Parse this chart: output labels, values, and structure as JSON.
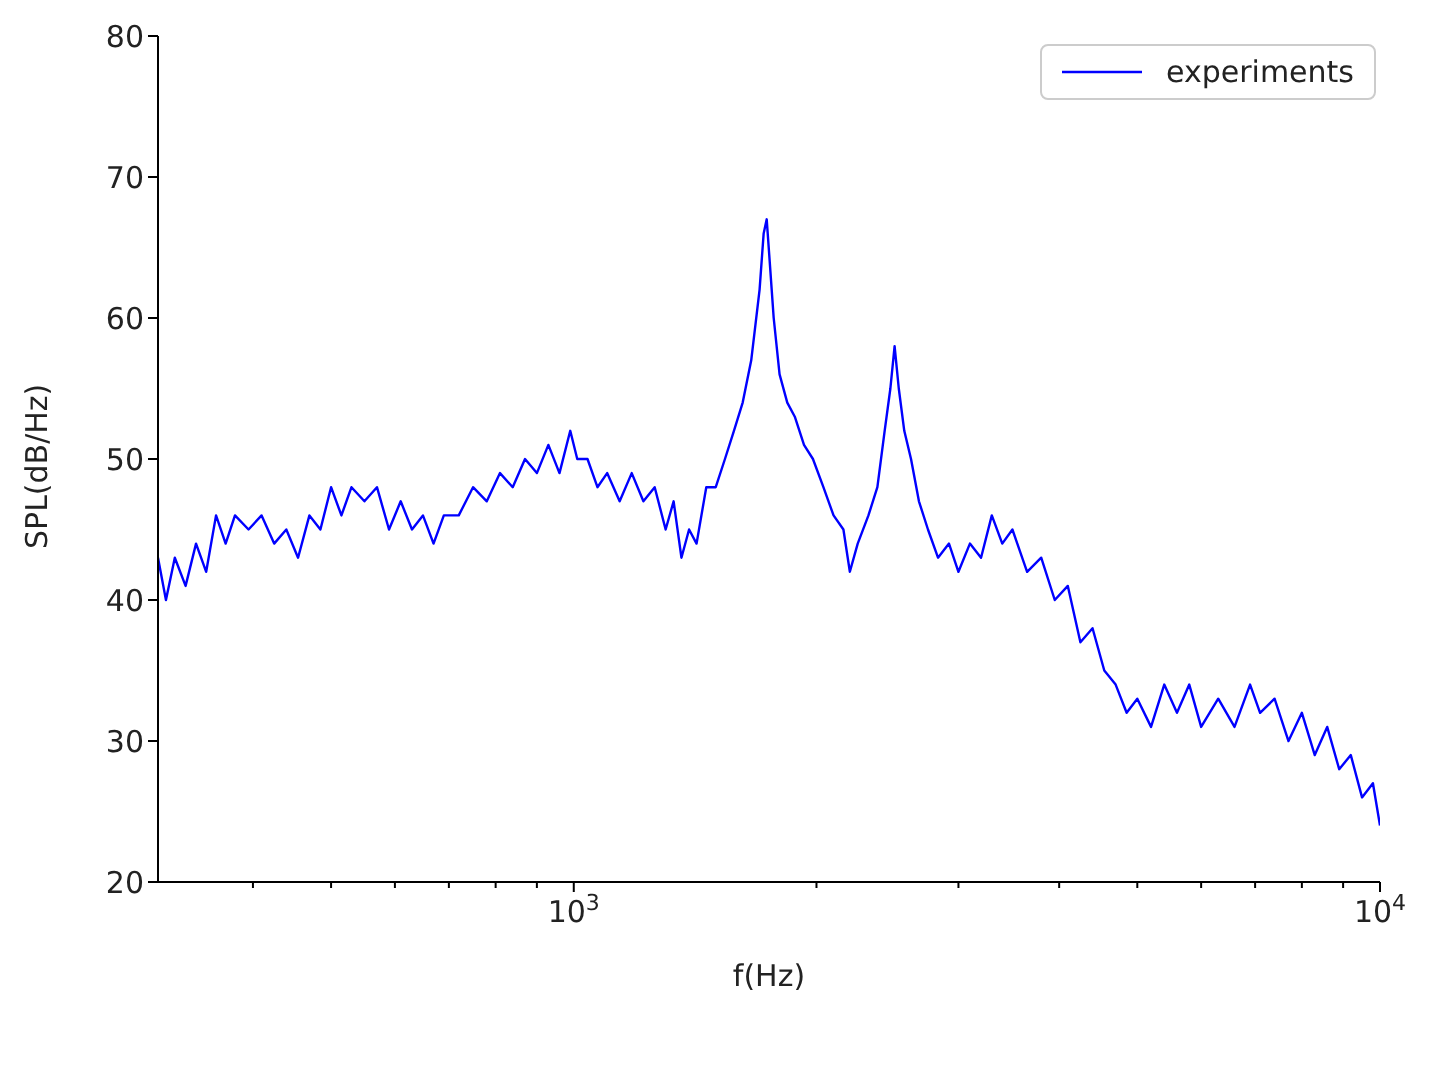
{
  "chart_data": {
    "type": "line",
    "xlabel": "f(Hz)",
    "ylabel": "SPL(dB/Hz)",
    "log": "x",
    "legend": "top right",
    "xlim": [
      305,
      10000
    ],
    "ylim": [
      20,
      80
    ],
    "xticks": [
      {
        "value": 400,
        "label": null
      },
      {
        "value": 500,
        "label": null
      },
      {
        "value": 600,
        "label": null
      },
      {
        "value": 700,
        "label": null
      },
      {
        "value": 800,
        "label": null
      },
      {
        "value": 900,
        "label": null
      },
      {
        "value": 1000,
        "label": "10$^{3}$"
      },
      {
        "value": 2000,
        "label": null
      },
      {
        "value": 3000,
        "label": null
      },
      {
        "value": 4000,
        "label": null
      },
      {
        "value": 5000,
        "label": null
      },
      {
        "value": 6000,
        "label": null
      },
      {
        "value": 7000,
        "label": null
      },
      {
        "value": 8000,
        "label": null
      },
      {
        "value": 9000,
        "label": null
      },
      {
        "value": 10000,
        "label": "10$^{4}$"
      }
    ],
    "yticks": [
      20,
      30,
      40,
      50,
      60,
      70,
      80
    ],
    "x": [
      305,
      312,
      320,
      330,
      340,
      350,
      360,
      370,
      380,
      395,
      410,
      425,
      440,
      455,
      470,
      485,
      500,
      515,
      530,
      550,
      570,
      590,
      610,
      630,
      650,
      670,
      690,
      720,
      750,
      780,
      810,
      840,
      870,
      900,
      930,
      960,
      990,
      1010,
      1040,
      1070,
      1100,
      1140,
      1180,
      1220,
      1260,
      1300,
      1330,
      1360,
      1390,
      1420,
      1460,
      1500,
      1540,
      1580,
      1620,
      1660,
      1700,
      1720,
      1735,
      1750,
      1770,
      1800,
      1840,
      1880,
      1930,
      1980,
      2040,
      2100,
      2160,
      2200,
      2250,
      2320,
      2380,
      2430,
      2470,
      2500,
      2530,
      2570,
      2620,
      2680,
      2750,
      2830,
      2920,
      3000,
      3100,
      3200,
      3300,
      3400,
      3500,
      3650,
      3800,
      3950,
      4100,
      4250,
      4400,
      4550,
      4700,
      4850,
      5000,
      5200,
      5400,
      5600,
      5800,
      6000,
      6300,
      6600,
      6900,
      7100,
      7400,
      7700,
      8000,
      8300,
      8600,
      8900,
      9200,
      9500,
      9800,
      10000
    ],
    "series": [
      {
        "name": "experiments",
        "color": "#0000ff",
        "values": [
          43,
          40,
          43,
          41,
          44,
          42,
          46,
          44,
          46,
          45,
          46,
          44,
          45,
          43,
          46,
          45,
          48,
          46,
          48,
          47,
          48,
          45,
          47,
          45,
          46,
          44,
          46,
          46,
          48,
          47,
          49,
          48,
          50,
          49,
          51,
          49,
          52,
          50,
          50,
          48,
          49,
          47,
          49,
          47,
          48,
          45,
          47,
          43,
          45,
          44,
          48,
          48,
          50,
          52,
          54,
          57,
          62,
          66,
          67,
          64,
          60,
          56,
          54,
          53,
          51,
          50,
          48,
          46,
          45,
          42,
          44,
          46,
          48,
          52,
          55,
          58,
          55,
          52,
          50,
          47,
          45,
          43,
          44,
          42,
          44,
          43,
          46,
          44,
          45,
          42,
          43,
          40,
          41,
          37,
          38,
          35,
          34,
          32,
          33,
          31,
          34,
          32,
          34,
          31,
          33,
          31,
          34,
          32,
          33,
          30,
          32,
          29,
          31,
          28,
          29,
          26,
          27,
          24
        ]
      }
    ]
  }
}
